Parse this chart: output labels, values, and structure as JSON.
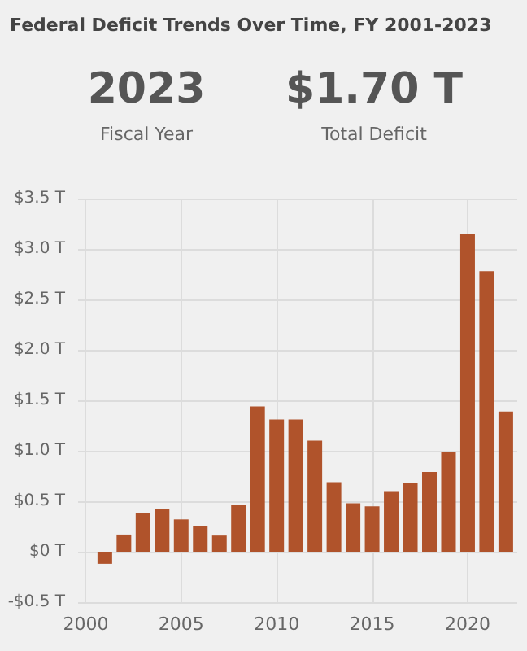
{
  "chart_data": {
    "type": "bar",
    "title": "Federal Deficit Trends Over Time, FY 2001-2023",
    "annotations": [
      "2023",
      "Fiscal Year",
      "$1.70 T",
      "Total Deficit"
    ],
    "x": [
      2001,
      2002,
      2003,
      2004,
      2005,
      2006,
      2007,
      2008,
      2009,
      2010,
      2011,
      2012,
      2013,
      2014,
      2015,
      2016,
      2017,
      2018,
      2019,
      2020,
      2021,
      2022
    ],
    "values": [
      -0.12,
      0.17,
      0.38,
      0.42,
      0.32,
      0.25,
      0.16,
      0.46,
      1.44,
      1.31,
      1.31,
      1.1,
      0.69,
      0.48,
      0.45,
      0.6,
      0.68,
      0.79,
      0.99,
      3.15,
      2.78,
      1.39
    ],
    "color": "#b0532b",
    "xlim": [
      1999.6,
      2022.6
    ],
    "xticks": [
      2000,
      2005,
      2010,
      2015,
      2020
    ],
    "ylim": [
      -0.5,
      3.5
    ],
    "yticks": [
      {
        "value": -0.5,
        "label": "-$0.5 T"
      },
      {
        "value": 0,
        "label": "$0 T"
      },
      {
        "value": 0.5,
        "label": "$0.5 T"
      },
      {
        "value": 1,
        "label": "$1.0 T"
      },
      {
        "value": 1.5,
        "label": "$1.5 T"
      },
      {
        "value": 2,
        "label": "$2.0 T"
      },
      {
        "value": 2.5,
        "label": "$2.5 T"
      },
      {
        "value": 3,
        "label": "$3.0 T"
      },
      {
        "value": 3.5,
        "label": "$3.5 T"
      }
    ],
    "grid": true
  }
}
